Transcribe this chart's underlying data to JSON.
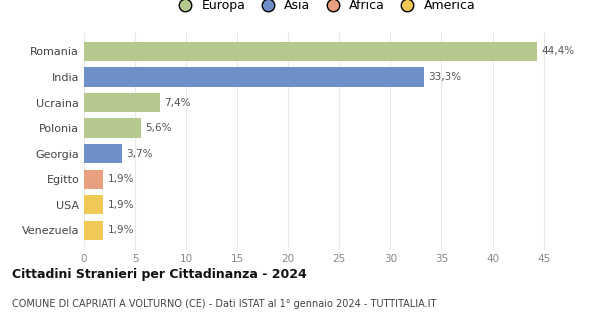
{
  "categories": [
    "Romania",
    "India",
    "Ucraina",
    "Polonia",
    "Georgia",
    "Egitto",
    "USA",
    "Venezuela"
  ],
  "values": [
    44.4,
    33.3,
    7.4,
    5.6,
    3.7,
    1.9,
    1.9,
    1.9
  ],
  "labels": [
    "44,4%",
    "33,3%",
    "7,4%",
    "5,6%",
    "3,7%",
    "1,9%",
    "1,9%",
    "1,9%"
  ],
  "colors": [
    "#b5c98e",
    "#6e8fc7",
    "#b5c98e",
    "#b5c98e",
    "#6e8fc7",
    "#e8a080",
    "#f0c855",
    "#f0c855"
  ],
  "legend_labels": [
    "Europa",
    "Asia",
    "Africa",
    "America"
  ],
  "legend_colors": [
    "#b5c98e",
    "#6e8fc7",
    "#e8a080",
    "#f0c855"
  ],
  "title": "Cittadini Stranieri per Cittadinanza - 2024",
  "subtitle": "COMUNE DI CAPRIATI A VOLTURNO (CE) - Dati ISTAT al 1° gennaio 2024 - TUTTITALIA.IT",
  "xlim": [
    0,
    47
  ],
  "xticks": [
    0,
    5,
    10,
    15,
    20,
    25,
    30,
    35,
    40,
    45
  ],
  "bg_color": "#ffffff",
  "grid_color": "#e8e8e8",
  "bar_height": 0.75
}
